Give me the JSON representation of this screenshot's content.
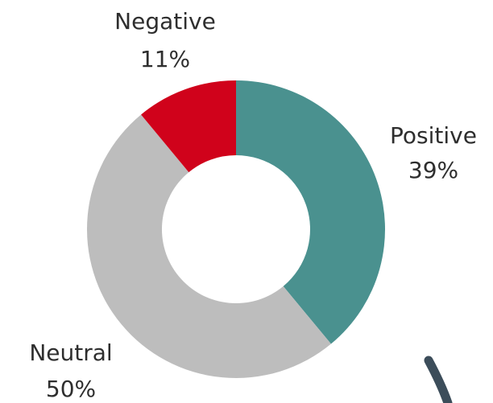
{
  "chart_data": {
    "type": "pie",
    "donut": true,
    "categories": [
      "Positive",
      "Neutral",
      "Negative"
    ],
    "values": [
      39,
      50,
      11
    ],
    "value_labels": [
      "39%",
      "50%",
      "11%"
    ],
    "colors": [
      "#4a918f",
      "#bdbdbd",
      "#d0021b"
    ]
  }
}
